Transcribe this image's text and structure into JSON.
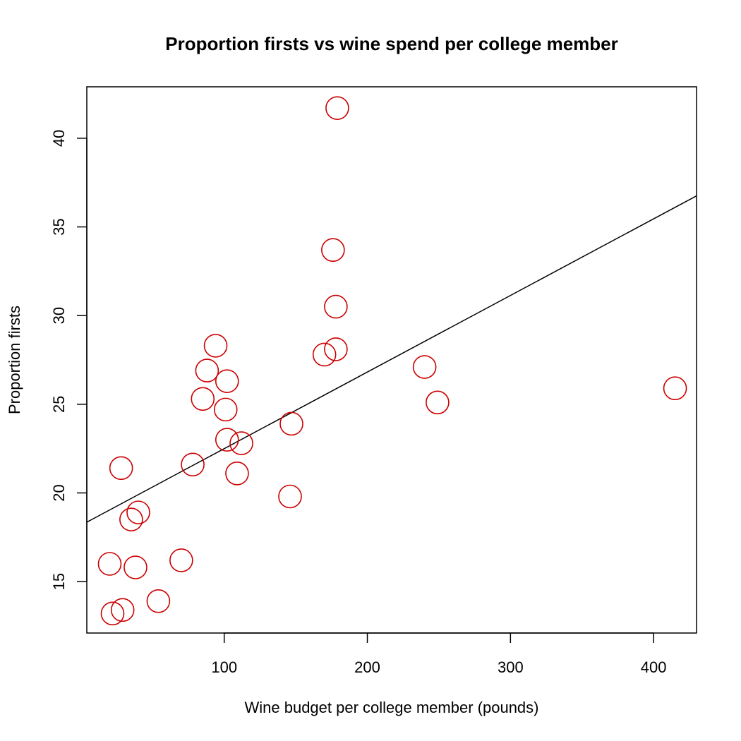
{
  "chart_data": {
    "type": "scatter",
    "title": "Proportion firsts vs wine spend per college member",
    "xlabel": "Wine budget per college member (pounds)",
    "ylabel": "Proportion firsts",
    "xlim": [
      4,
      430
    ],
    "ylim": [
      12.1,
      42.9
    ],
    "x_ticks": [
      100,
      200,
      300,
      400
    ],
    "y_ticks": [
      15,
      20,
      25,
      30,
      35,
      40
    ],
    "grid": false,
    "legend": "none",
    "point_color": "#cc0000",
    "line_color": "#000000",
    "points": [
      {
        "x": 179,
        "y": 41.7
      },
      {
        "x": 176,
        "y": 33.7
      },
      {
        "x": 178,
        "y": 30.5
      },
      {
        "x": 178,
        "y": 28.1
      },
      {
        "x": 170,
        "y": 27.8
      },
      {
        "x": 94,
        "y": 28.3
      },
      {
        "x": 88,
        "y": 26.9
      },
      {
        "x": 102,
        "y": 26.3
      },
      {
        "x": 85,
        "y": 25.3
      },
      {
        "x": 101,
        "y": 24.7
      },
      {
        "x": 102,
        "y": 23.0
      },
      {
        "x": 112,
        "y": 22.8
      },
      {
        "x": 147,
        "y": 23.9
      },
      {
        "x": 78,
        "y": 21.6
      },
      {
        "x": 109,
        "y": 21.1
      },
      {
        "x": 146,
        "y": 19.8
      },
      {
        "x": 240,
        "y": 27.1
      },
      {
        "x": 249,
        "y": 25.1
      },
      {
        "x": 415,
        "y": 25.9
      },
      {
        "x": 28,
        "y": 21.4
      },
      {
        "x": 40,
        "y": 18.9
      },
      {
        "x": 35,
        "y": 18.5
      },
      {
        "x": 20,
        "y": 16.0
      },
      {
        "x": 38,
        "y": 15.8
      },
      {
        "x": 70,
        "y": 16.2
      },
      {
        "x": 54,
        "y": 13.9
      },
      {
        "x": 29,
        "y": 13.4
      },
      {
        "x": 22,
        "y": 13.2
      }
    ],
    "regression_line": {
      "x": [
        4,
        430
      ],
      "y": [
        18.35,
        36.75
      ]
    }
  }
}
